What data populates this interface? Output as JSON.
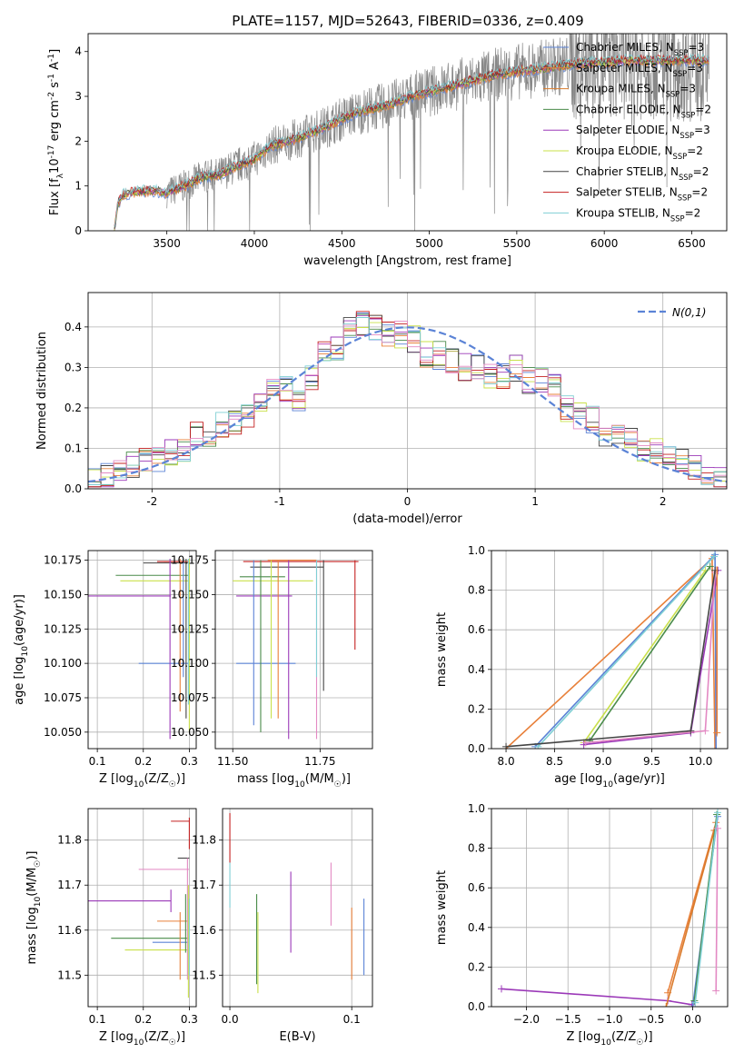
{
  "figure": {
    "title": "PLATE=1157, MJD=52643, FIBERID=0336, z=0.409"
  },
  "colors": {
    "blue": "#5b83d6",
    "orange": "#e8803a",
    "dorange": "#d97b2c",
    "green": "#4a8c4a",
    "purple": "#9b39b8",
    "yellow": "#c9e04a",
    "dgray": "#444444",
    "red": "#c42020",
    "cyan": "#7fcfd4",
    "pink": "#e389c3",
    "gray": "#888888"
  },
  "chart_data": [
    {
      "id": "spectrum",
      "type": "line",
      "xlabel": "wavelength [Angstrom, rest frame]",
      "ylabel": "Flux [f$_\\lambda$10$^{-17}$ erg cm$^{-2}$ s$^{-1}$ A$^{-1}$]",
      "xlim": [
        3050,
        6700
      ],
      "ylim": [
        0,
        4.4
      ],
      "xticks": [
        3500,
        4000,
        4500,
        5000,
        5500,
        6000,
        6500
      ],
      "yticks": [
        0,
        1,
        2,
        3,
        4
      ],
      "grid": false,
      "legend": "top-right",
      "series": [
        {
          "name": "Chabrier MILES, N$_{SSP}$=3",
          "color": "#5b83d6"
        },
        {
          "name": "Salpeter MILES, N$_{SSP}$=3",
          "color": "#e8803a"
        },
        {
          "name": "Kroupa MILES, N$_{SSP}$=3",
          "color": "#d97b2c"
        },
        {
          "name": "Chabrier ELODIE, N$_{SSP}$=2",
          "color": "#4a8c4a"
        },
        {
          "name": "Salpeter ELODIE, N$_{SSP}$=3",
          "color": "#9b39b8"
        },
        {
          "name": "Kroupa ELODIE, N$_{SSP}$=2",
          "color": "#c9e04a"
        },
        {
          "name": "Chabrier STELIB, N$_{SSP}$=2",
          "color": "#444444"
        },
        {
          "name": "Salpeter STELIB, N$_{SSP}$=2",
          "color": "#c42020"
        },
        {
          "name": "Kroupa STELIB, N$_{SSP}$=2",
          "color": "#7fcfd4"
        }
      ],
      "continuum": {
        "x": [
          3200,
          3220,
          3250,
          3300,
          3400,
          3500,
          3600,
          3700,
          3800,
          3900,
          4000,
          4100,
          4200,
          4300,
          4400,
          4500,
          4600,
          4700,
          4800,
          4900,
          5000,
          5100,
          5200,
          5300,
          5400,
          5500,
          5600,
          5700,
          5800,
          5900,
          6000,
          6100,
          6200,
          6300,
          6400,
          6500,
          6600
        ],
        "y": [
          0.0,
          0.6,
          0.8,
          0.85,
          0.9,
          0.85,
          1.0,
          1.2,
          1.25,
          1.45,
          1.6,
          1.9,
          2.0,
          2.15,
          2.3,
          2.5,
          2.65,
          2.75,
          2.85,
          3.0,
          3.1,
          3.2,
          3.3,
          3.4,
          3.5,
          3.55,
          3.6,
          3.65,
          3.7,
          3.75,
          3.75,
          3.8,
          3.8,
          3.8,
          3.8,
          3.8,
          3.8
        ]
      },
      "observed_start": 3500
    },
    {
      "id": "residuals",
      "type": "line",
      "xlabel": "(data-model)/error",
      "ylabel": "Normed distribution",
      "xlim": [
        -2.5,
        2.5
      ],
      "ylim": [
        0,
        0.485
      ],
      "xticks": [
        -2,
        -1,
        0,
        1,
        2
      ],
      "yticks": [
        0.0,
        0.1,
        0.2,
        0.3,
        0.4
      ],
      "grid": true,
      "legend": "top-right",
      "legend_label": "$\\mathcal{N}(0,1)$",
      "bin_width": 0.1,
      "bin_start": -2.5,
      "hist_envelope": [
        0.02,
        0.03,
        0.04,
        0.05,
        0.06,
        0.06,
        0.07,
        0.07,
        0.08,
        0.09,
        0.1,
        0.11,
        0.13,
        0.14,
        0.16,
        0.17,
        0.17,
        0.18,
        0.16,
        0.22,
        0.24,
        0.23,
        0.25,
        0.22,
        0.28,
        0.3,
        0.33,
        0.35,
        0.38,
        0.4,
        0.41,
        0.37,
        0.4,
        0.38,
        0.39,
        0.38,
        0.37,
        0.33,
        0.33,
        0.33,
        0.32,
        0.33,
        0.3,
        0.3,
        0.31,
        0.28,
        0.28,
        0.27,
        0.3,
        0.27,
        0.27,
        0.23,
        0.25,
        0.2,
        0.19,
        0.18,
        0.17,
        0.15,
        0.14,
        0.13,
        0.12,
        0.11,
        0.1,
        0.09,
        0.08,
        0.08,
        0.07,
        0.06,
        0.05,
        0.04,
        0.04,
        0.03,
        0.03
      ]
    },
    {
      "id": "age-vs-Z",
      "type": "scatter",
      "xlabel": "Z [log$_{10}$(Z/Z$_\\odot$)]",
      "ylabel": "age  [log$_{10}$(age/yr)]",
      "xlim": [
        0.08,
        0.315
      ],
      "ylim": [
        10.038,
        10.182
      ],
      "xticks": [
        0.1,
        0.2,
        0.3
      ],
      "ytick_labels": [
        "10.050",
        "10.075",
        "10.100",
        "10.125",
        "10.150",
        "10.175"
      ],
      "yticks": [
        10.05,
        10.075,
        10.1,
        10.125,
        10.15,
        10.175
      ],
      "grid": true
    },
    {
      "id": "age-vs-mass",
      "type": "scatter",
      "xlabel": "mass [log$_{10}$(M/M$_\\odot$)]",
      "xlim": [
        11.45,
        11.9
      ],
      "ylim": [
        10.038,
        10.182
      ],
      "xticks": [
        11.5,
        11.75
      ],
      "xtick_labels": [
        "11.50",
        "11.75"
      ],
      "ytick_labels": [
        "10.050",
        "10.075",
        "10.100",
        "10.125",
        "10.150",
        "10.175"
      ],
      "yticks": [
        10.05,
        10.075,
        10.1,
        10.125,
        10.15,
        10.175
      ],
      "grid": true
    },
    {
      "id": "weight-vs-age",
      "type": "line",
      "xlabel": "age  [log$_{10}$(age/yr)]",
      "ylabel": "mass weight",
      "xlim": [
        7.85,
        10.28
      ],
      "ylim": [
        0,
        1
      ],
      "xticks": [
        8.0,
        8.5,
        9.0,
        9.5,
        10.0
      ],
      "xtick_labels": [
        "8.0",
        "8.5",
        "9.0",
        "9.5",
        "10.0"
      ],
      "yticks": [
        0.0,
        0.2,
        0.4,
        0.6,
        0.8,
        1.0
      ],
      "ytick_labels": [
        "0.0",
        "0.2",
        "0.4",
        "0.6",
        "0.8",
        "1.0"
      ],
      "grid": true
    },
    {
      "id": "mass-vs-Z",
      "type": "scatter",
      "xlabel": "Z [log$_{10}$(Z/Z$_\\odot$)]",
      "ylabel": "mass [log$_{10}$(M/M$_\\odot$)]",
      "xlim": [
        0.08,
        0.315
      ],
      "ylim": [
        11.43,
        11.87
      ],
      "xticks": [
        0.1,
        0.2,
        0.3
      ],
      "yticks": [
        11.5,
        11.6,
        11.7,
        11.8
      ],
      "grid": true
    },
    {
      "id": "mass-vs-EBV",
      "type": "scatter",
      "xlabel": "E(B-V)",
      "xlim": [
        -0.006,
        0.117
      ],
      "ylim": [
        11.43,
        11.87
      ],
      "xticks": [
        0.0,
        0.1
      ],
      "xtick_labels": [
        "0.0",
        "0.1"
      ],
      "yticks": [
        11.5,
        11.6,
        11.7,
        11.8
      ],
      "grid": true
    },
    {
      "id": "weight-vs-Z",
      "type": "line",
      "xlabel": "Z [log$_{10}$(Z/Z$_\\odot$)]",
      "ylabel": "mass weight",
      "xlim": [
        -2.42,
        0.42
      ],
      "ylim": [
        0,
        1
      ],
      "xticks": [
        -2.0,
        -1.5,
        -1.0,
        -0.5,
        0.0
      ],
      "xtick_labels": [
        "−2.0",
        "−1.5",
        "−1.0",
        "−0.5",
        "0.0"
      ],
      "yticks": [
        0.0,
        0.2,
        0.4,
        0.6,
        0.8,
        1.0
      ],
      "ytick_labels": [
        "0.0",
        "0.2",
        "0.4",
        "0.6",
        "0.8",
        "1.0"
      ],
      "grid": true
    }
  ]
}
